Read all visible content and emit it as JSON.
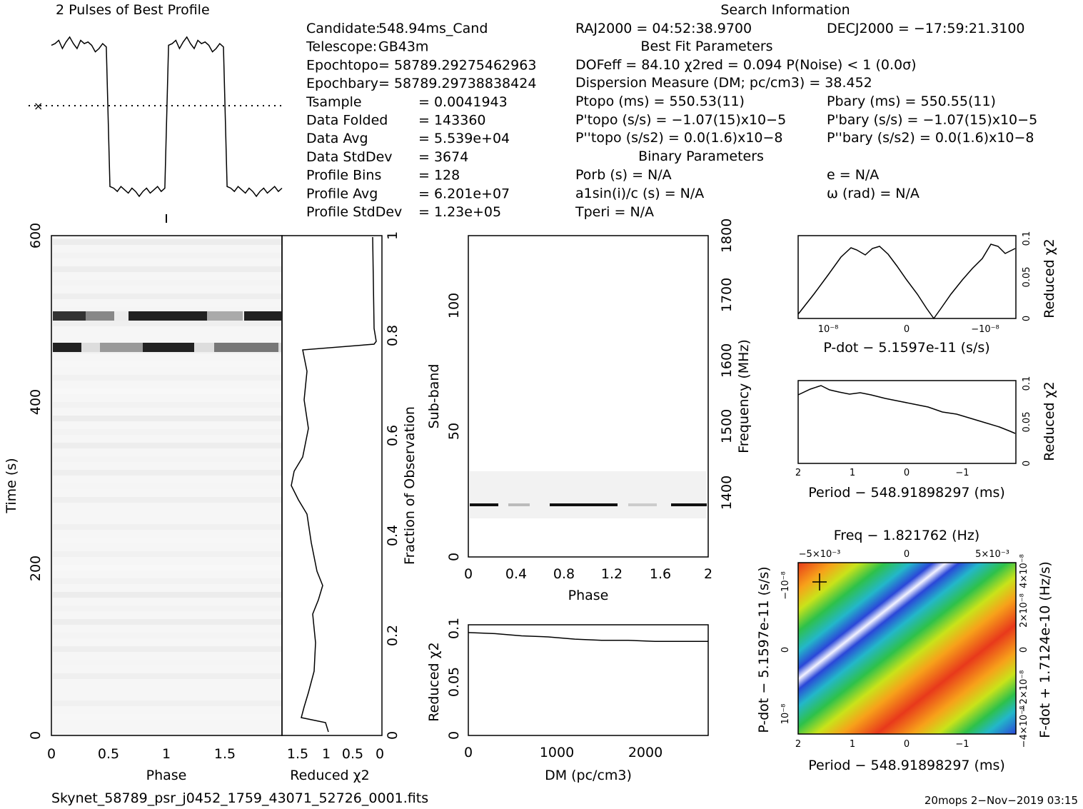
{
  "chart_data": {
    "type": "line",
    "profile": {
      "title": "2 Pulses of Best Profile",
      "values": [
        0.92,
        0.93,
        0.95,
        0.9,
        0.94,
        0.97,
        0.93,
        0.9,
        0.95,
        0.93,
        0.94,
        0.92,
        0.88,
        0.9,
        0.93,
        0.91,
        0.06,
        0.05,
        0.03,
        0.06,
        0.04,
        0.02,
        0.05,
        0.03,
        0.0,
        0.03,
        0.05,
        0.02,
        0.04,
        0.06,
        0.03,
        0.05,
        0.92,
        0.93,
        0.95,
        0.9,
        0.94,
        0.97,
        0.93,
        0.9,
        0.95,
        0.93,
        0.94,
        0.92,
        0.88,
        0.9,
        0.93,
        0.91,
        0.06,
        0.05,
        0.03,
        0.06,
        0.04,
        0.02,
        0.05,
        0.03,
        0.0,
        0.03,
        0.05,
        0.02,
        0.04,
        0.06,
        0.03,
        0.05
      ]
    },
    "greyscale_time": {
      "xlabel": "Phase",
      "ylabel": "Time (s)",
      "xlim": [
        0,
        2
      ],
      "ylim": [
        0,
        600
      ],
      "x_ticks": [
        "0",
        "0.5",
        "1",
        "1.5"
      ],
      "y_ticks": [
        "0",
        "200",
        "400",
        "600"
      ],
      "dark_bands": [
        {
          "time": 500,
          "phase_start": 0.7,
          "phase_end": 1.0
        },
        {
          "time": 465,
          "phase_start": 0.1,
          "phase_end": 0.25
        }
      ]
    },
    "chi_vs_time": {
      "xlabel": "Reduced χ2",
      "x_ticks": [
        "1.5",
        "1",
        "0.5",
        "0"
      ],
      "y2label": "Fraction of Observation",
      "y2_ticks": [
        "0",
        "0.2",
        "0.4",
        "0.6",
        "0.8",
        "1"
      ]
    },
    "subbands": {
      "xlabel": "Phase",
      "ylabel": "Sub-band",
      "y2label": "Frequency (MHz)",
      "xlim": [
        0,
        2
      ],
      "ylim": [
        0,
        128
      ],
      "x_ticks": [
        "0",
        "0.4",
        "0.8",
        "1.2",
        "1.6",
        "2"
      ],
      "y_ticks": [
        "0",
        "50",
        "100"
      ],
      "y2_ticks": [
        "1400",
        "1500",
        "1600",
        "1700",
        "1800"
      ]
    },
    "dm_curve": {
      "xlabel": "DM (pc/cm3)",
      "ylabel": "Reduced χ2",
      "xlim": [
        0,
        2700
      ],
      "ylim": [
        0,
        0.1
      ],
      "x_ticks": [
        "0",
        "1000",
        "2000"
      ],
      "y_ticks": [
        "0",
        "0.05",
        "0.1"
      ],
      "x": [
        0,
        300,
        600,
        900,
        1200,
        1500,
        1800,
        2100,
        2400,
        2700
      ],
      "y": [
        0.093,
        0.092,
        0.09,
        0.089,
        0.087,
        0.086,
        0.086,
        0.085,
        0.085,
        0.085
      ]
    },
    "pdot_curve": {
      "xlabel": "P-dot − 5.1597e-11 (s/s)",
      "ylabel": "Reduced χ2",
      "x_ticks": [
        "10⁻⁸",
        "0",
        "−10⁻⁸"
      ],
      "y_ticks": [
        "0",
        "0.05",
        "0.1"
      ]
    },
    "period_curve": {
      "xlabel": "Period − 548.91898297 (ms)",
      "ylabel": "Reduced χ2",
      "x_ticks": [
        "2",
        "1",
        "0",
        "−1"
      ],
      "y_ticks": [
        "0",
        "0.05",
        "0.1"
      ]
    },
    "ppdot_plane": {
      "toplabel": "Freq − 1.821762 (Hz)",
      "top_ticks": [
        "−5×10⁻³",
        "0",
        "5×10⁻³"
      ],
      "xlabel": "Period − 548.91898297 (ms)",
      "x_ticks": [
        "2",
        "1",
        "0",
        "−1"
      ],
      "ylabel": "P-dot − 5.1597e-11 (s/s)",
      "y_ticks": [
        "10⁻⁸",
        "0",
        "−10⁻⁸"
      ],
      "y2label": "F-dot + 1.7124e-10 (Hz/s)",
      "y2_ticks": [
        "−4×10⁻⁸",
        "−2×10⁻⁸",
        "0",
        "2×10⁻⁸",
        "4×10⁻⁸"
      ]
    }
  },
  "info": {
    "col1": [
      [
        "Candidate:",
        "548.94ms_Cand"
      ],
      [
        "Telescope:",
        "GB43m"
      ],
      [
        "Epochtopo",
        "= 58789.29275462963"
      ],
      [
        "Epochbary",
        "= 58789.29738838424"
      ],
      [
        "Tsample",
        "= 0.0041943"
      ],
      [
        "Data Folded",
        "= 143360"
      ],
      [
        "Data Avg",
        "= 5.539e+04"
      ],
      [
        "Data StdDev",
        "= 3674"
      ],
      [
        "Profile Bins",
        "= 128"
      ],
      [
        "Profile Avg",
        "= 6.201e+07"
      ],
      [
        "Profile StdDev",
        "= 1.23e+05"
      ]
    ],
    "search_title": "Search Information",
    "ra": "RAJ2000 = 04:52:38.9700",
    "dec": "DECJ2000 = −17:59:21.3100",
    "bestfit_title": "Best Fit Parameters",
    "dof": "DOFeff = 84.10  χ2red = 0.094  P(Noise) < 1   (0.0σ)",
    "dm": "Dispersion Measure (DM; pc/cm3) = 38.452",
    "ptopo": "Ptopo (ms) =  550.53(11)",
    "pbary": "Pbary (ms) =  550.55(11)",
    "pdtopo": "P'topo (s/s) = −1.07(15)x10−5",
    "pdbary": "P'bary (s/s) = −1.07(15)x10−5",
    "pddtopo": "P''topo (s/s2) = 0.0(1.6)x10−8",
    "pddbary": "P''bary (s/s2) = 0.0(1.6)x10−8",
    "binary_title": "Binary Parameters",
    "porb": "Porb (s) = N/A",
    "a1": "a1sin(i)/c (s) = N/A",
    "tperi": "Tperi = N/A",
    "e": "e = N/A",
    "omega": "ω (rad) = N/A"
  },
  "footer": {
    "filename": "Skynet_58789_psr_j0452_1759_43071_52726_0001.fits",
    "stamp": "20mops   2−Nov−2019 03:15"
  }
}
